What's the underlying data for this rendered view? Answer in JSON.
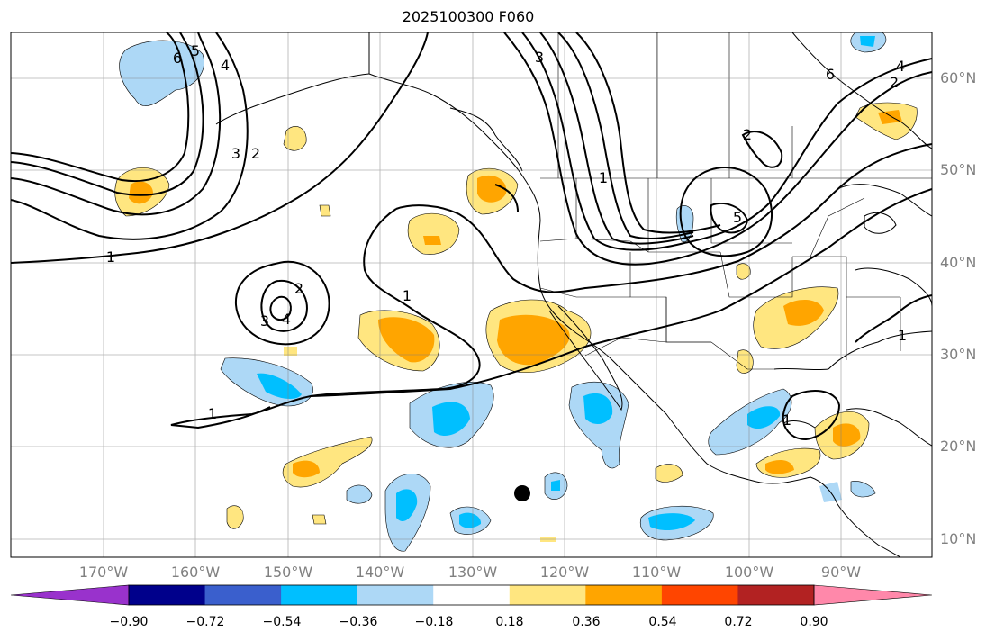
{
  "title": "2025100300 F060",
  "lat_labels": [
    "60°N",
    "50°N",
    "40°N",
    "30°N",
    "20°N",
    "10°N"
  ],
  "lon_labels": [
    "170°W",
    "160°W",
    "150°W",
    "140°W",
    "130°W",
    "120°W",
    "110°W",
    "100°W",
    "90°W"
  ],
  "contour_labels": [
    "1",
    "1",
    "1",
    "1",
    "1",
    "2",
    "2",
    "2",
    "3",
    "3",
    "3",
    "4",
    "4",
    "5",
    "5",
    "6",
    "6",
    "1",
    "2",
    "4"
  ],
  "colorbar": {
    "tick_labels": [
      "−0.90",
      "−0.72",
      "−0.54",
      "−0.36",
      "−0.18",
      "0.18",
      "0.36",
      "0.54",
      "0.72",
      "0.90"
    ],
    "colors": [
      "#9932cc",
      "#00008b",
      "#3a5fcd",
      "#00bfff",
      "#add8f6",
      "#ffffff",
      "#ffe680",
      "#ffa500",
      "#ff4500",
      "#b22222",
      "#ff88aa"
    ]
  }
}
